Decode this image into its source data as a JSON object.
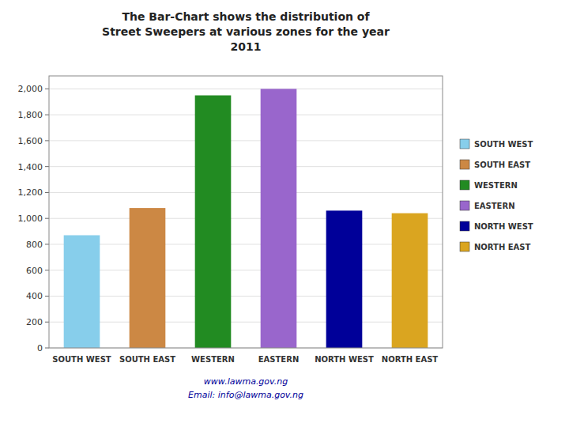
{
  "chart_data": {
    "type": "bar",
    "title": "The Bar-Chart shows the distribution of\nStreet Sweepers at various zones for the year\n2011",
    "categories": [
      "SOUTH WEST",
      "SOUTH EAST",
      "WESTERN",
      "EASTERN",
      "NORTH WEST",
      "NORTH EAST"
    ],
    "values": [
      870,
      1080,
      1950,
      2000,
      1060,
      1040
    ],
    "colors": [
      "#87CEEB",
      "#CC8844",
      "#228B22",
      "#9966CC",
      "#000099",
      "#DAA520"
    ],
    "ylim": [
      0,
      2100
    ],
    "yticks": [
      0,
      200,
      400,
      600,
      800,
      {
        "value": 1000,
        "label": "1,000"
      },
      {
        "value": 1200,
        "label": "1,200"
      },
      {
        "value": 1400,
        "label": "1,400"
      },
      {
        "value": 1600,
        "label": "1,600"
      },
      {
        "value": 1800,
        "label": "1,800"
      },
      {
        "value": 2000,
        "label": "2,000"
      }
    ],
    "grid": true,
    "legend": "right",
    "annotations": [
      "www.lawma.gov.ng",
      "Email: info@lawma.gov.ng"
    ]
  }
}
